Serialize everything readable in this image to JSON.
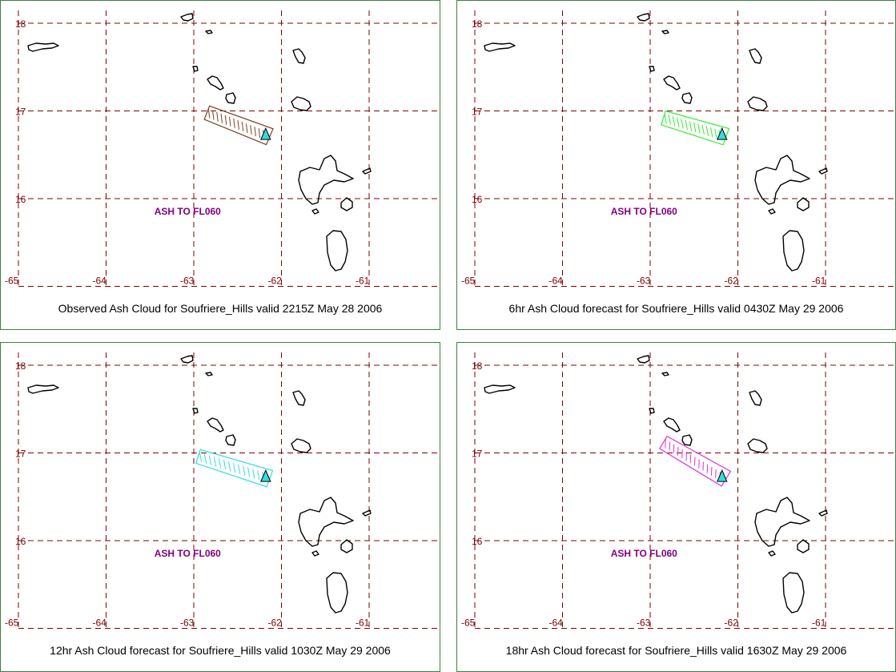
{
  "panels": [
    {
      "caption": "Observed Ash Cloud for Soufriere_Hills valid 2215Z May 28 2006",
      "ash_label": "ASH TO FL060",
      "plume_color": "#804020",
      "plume_start": {
        "lon": -62.85,
        "lat": 16.98
      }
    },
    {
      "caption": "6hr Ash Cloud forecast for Soufriere_Hills valid 0430Z May 29 2006",
      "ash_label": "ASH TO FL060",
      "plume_color": "#33ee33",
      "plume_start": {
        "lon": -62.85,
        "lat": 16.92
      }
    },
    {
      "caption": "12hr Ash Cloud forecast for Soufriere_Hills valid 1030Z May 29 2006",
      "ash_label": "ASH TO FL060",
      "plume_color": "#33dddd",
      "plume_start": {
        "lon": -62.95,
        "lat": 16.96
      }
    },
    {
      "caption": "18hr Ash Cloud forecast for Soufriere_Hills valid 1630Z May 29 2006",
      "ash_label": "ASH TO FL060",
      "plume_color": "#dd33dd",
      "plume_start": {
        "lon": -62.85,
        "lat": 17.12
      }
    }
  ],
  "map": {
    "lat_labels": [
      "18",
      "17",
      "16"
    ],
    "lon_labels": [
      "-65",
      "-64",
      "-63",
      "-62",
      "-61"
    ],
    "lats": [
      18,
      17,
      16
    ],
    "lons": [
      -65,
      -64,
      -63,
      -62,
      -61
    ],
    "volcano": {
      "lon": -62.18,
      "lat": 16.72
    },
    "grid_color": "#800000",
    "volcano_color": "#33dddd"
  }
}
